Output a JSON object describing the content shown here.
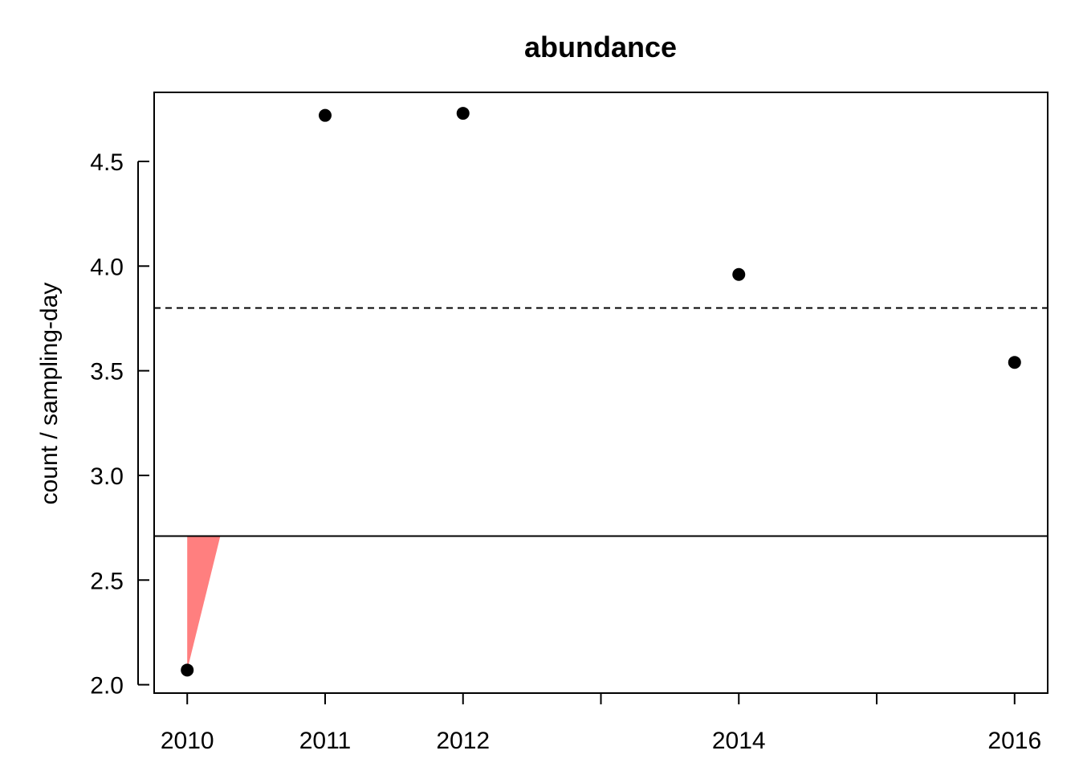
{
  "colors": {
    "point": "#000000",
    "shade": "#ff7f7f",
    "axis": "#000000"
  },
  "chart_data": {
    "type": "scatter",
    "title": "abundance",
    "xlabel": "",
    "ylabel": "count / sampling-day",
    "xlim": [
      2009.76,
      2016.24
    ],
    "ylim": [
      1.96,
      4.83
    ],
    "x_ticks": [
      2010,
      2011,
      2012,
      2013,
      2014,
      2015,
      2016
    ],
    "x_tick_labels": [
      "2010",
      "2011",
      "2012",
      "",
      "2014",
      "",
      "2016"
    ],
    "y_ticks": [
      2.0,
      2.5,
      3.0,
      3.5,
      4.0,
      4.5
    ],
    "y_tick_labels": [
      "2.0",
      "2.5",
      "3.0",
      "3.5",
      "4.0",
      "4.5"
    ],
    "grid": false,
    "series": [
      {
        "x": [
          2010,
          2011,
          2012,
          2014,
          2016
        ],
        "y": [
          2.07,
          4.72,
          4.73,
          3.96,
          3.54
        ]
      }
    ],
    "reference_lines": [
      {
        "y": 3.8,
        "style": "dashed"
      },
      {
        "y": 2.71,
        "style": "solid"
      }
    ],
    "shaded_region": {
      "polygon": [
        [
          2010,
          2.07
        ],
        [
          2010,
          2.71
        ],
        [
          2010.24,
          2.71
        ]
      ]
    }
  }
}
